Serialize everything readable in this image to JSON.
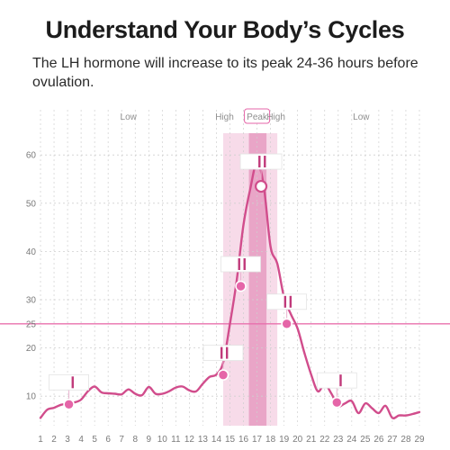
{
  "header": {
    "title": "Understand Your Body’s Cycles",
    "subtitle": "The LH hormone will increase to its peak 24-36 hours before ovulation."
  },
  "colors": {
    "curve": "#d14d8c",
    "marker": "#e565a8",
    "threshold": "#e870ad",
    "fertile_band": "#f7dbe9",
    "peak_band": "#e9a5c7",
    "grid": "#cfcfcf"
  },
  "chart_data": {
    "type": "line",
    "title": "",
    "xlabel": "",
    "ylabel": "",
    "x_ticks": [
      1,
      2,
      3,
      4,
      5,
      6,
      7,
      8,
      9,
      10,
      11,
      12,
      13,
      14,
      15,
      16,
      17,
      18,
      19,
      20,
      21,
      22,
      23,
      24,
      25,
      26,
      27,
      28,
      29
    ],
    "y_ticks": [
      10,
      20,
      25,
      30,
      40,
      50,
      60
    ],
    "xlim": [
      1,
      29
    ],
    "ylim": [
      5,
      62
    ],
    "grid": true,
    "zones": [
      {
        "label": "Low",
        "day": 7.5
      },
      {
        "label": "High",
        "day": 14.6
      },
      {
        "label": "Peak",
        "day": 17.0,
        "boxed": true
      },
      {
        "label": "High",
        "day": 18.4
      },
      {
        "label": "Low",
        "day": 24.7
      }
    ],
    "threshold": 25,
    "fertile_window": [
      14.5,
      18.5
    ],
    "peak_window": [
      16.4,
      17.7
    ],
    "series": [
      {
        "x": [
          1,
          1.5,
          2,
          2.5,
          3,
          3.5,
          4,
          4.5,
          5,
          5.5,
          6,
          6.5,
          7,
          7.5,
          8,
          8.5,
          9,
          9.5,
          10,
          10.5,
          11,
          11.5,
          12,
          12.5,
          13,
          13.5,
          14,
          14.5,
          15,
          15.5,
          16,
          16.5,
          17,
          17.5,
          18,
          18.5,
          19,
          19.5,
          20,
          20.5,
          21,
          21.5,
          22,
          22.5,
          23,
          23.5,
          24,
          24.5,
          25,
          25.5,
          26,
          26.5,
          27,
          27.5,
          28,
          28.5,
          29
        ],
        "values": [
          5.5,
          7.2,
          7.6,
          8.2,
          8.4,
          8.7,
          9.3,
          11.0,
          12.0,
          10.8,
          10.6,
          10.5,
          10.4,
          11.4,
          10.5,
          10.2,
          11.9,
          10.5,
          10.5,
          11.0,
          11.8,
          12.0,
          11.2,
          11.0,
          12.6,
          14.0,
          14.5,
          17.0,
          25.0,
          34.0,
          45.5,
          53.0,
          58.5,
          53.5,
          41.0,
          37.5,
          30.5,
          27.0,
          24.0,
          19.0,
          14.5,
          11.0,
          12.5,
          10.5,
          8.0,
          8.5,
          9.0,
          6.5,
          8.5,
          7.5,
          6.5,
          8.0,
          5.5,
          6.0,
          6.0,
          6.3,
          6.7
        ]
      }
    ],
    "markers": [
      {
        "x": 3.1,
        "y": 8.3,
        "test_lines": 1
      },
      {
        "x": 14.5,
        "y": 14.4,
        "test_lines": 2
      },
      {
        "x": 15.8,
        "y": 32.8,
        "test_lines": 2
      },
      {
        "x": 17.3,
        "y": 53.5,
        "test_lines": 2
      },
      {
        "x": 19.2,
        "y": 25.0,
        "test_lines": 2
      },
      {
        "x": 22.9,
        "y": 8.7,
        "test_lines": 1
      }
    ]
  }
}
